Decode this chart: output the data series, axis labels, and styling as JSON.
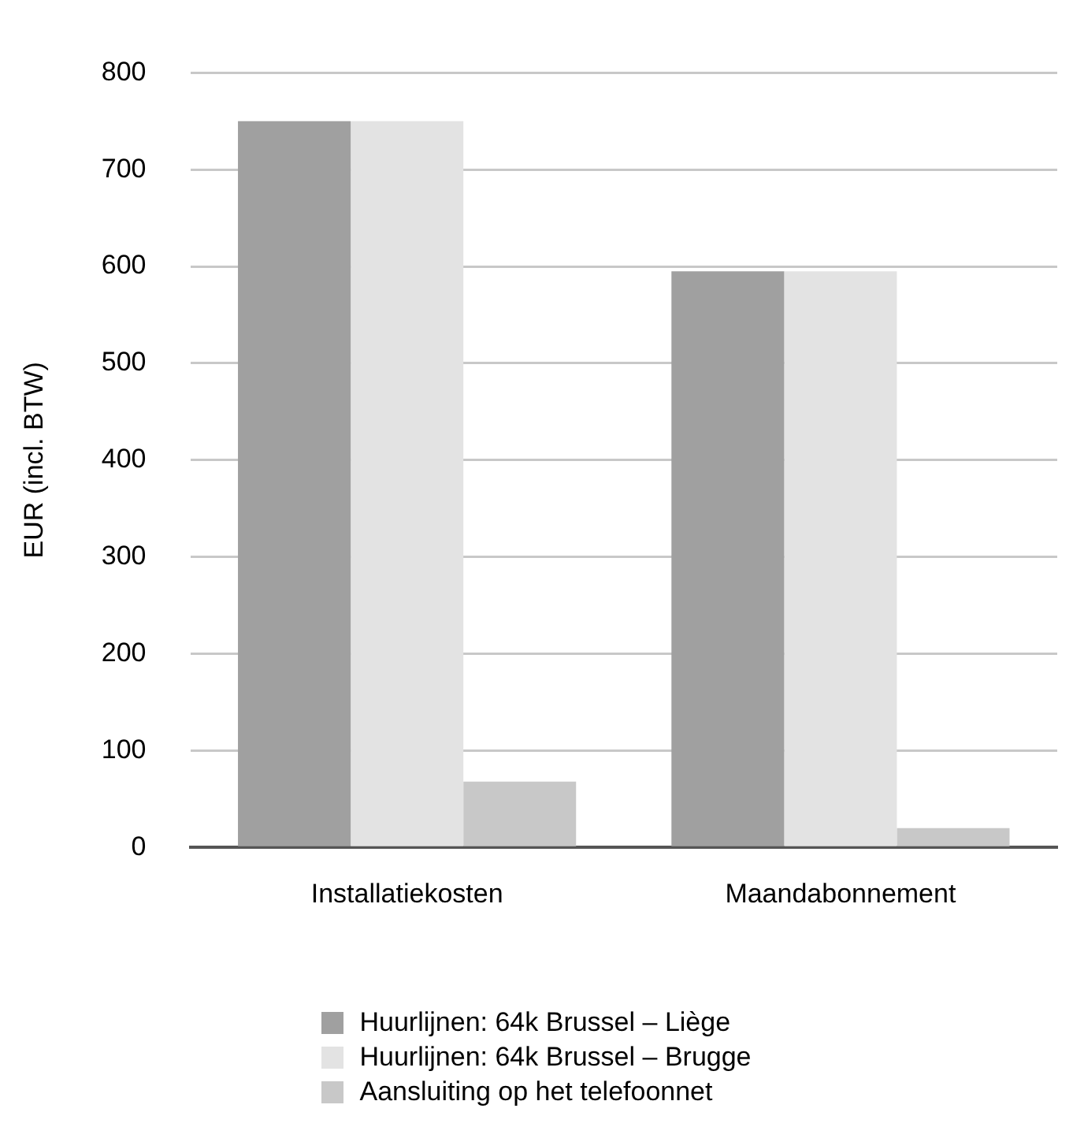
{
  "chart_data": {
    "type": "bar",
    "ylabel": "EUR (incl. BTW)",
    "categories": [
      "Installatiekosten",
      "Maandabonnement"
    ],
    "series": [
      {
        "name": "Huurlijnen: 64k Brussel – Liège",
        "color": "#a0a0a0",
        "values": [
          750,
          595
        ]
      },
      {
        "name": "Huurlijnen: 64k Brussel – Brugge",
        "color": "#e3e3e3",
        "values": [
          750,
          595
        ]
      },
      {
        "name": "Aansluiting op het telefoonnet",
        "color": "#c8c8c8",
        "values": [
          68,
          20
        ]
      }
    ],
    "ylim": [
      0,
      800
    ],
    "yticks": [
      0,
      100,
      200,
      300,
      400,
      500,
      600,
      700,
      800
    ],
    "grid": "y",
    "legend": "bottom"
  }
}
